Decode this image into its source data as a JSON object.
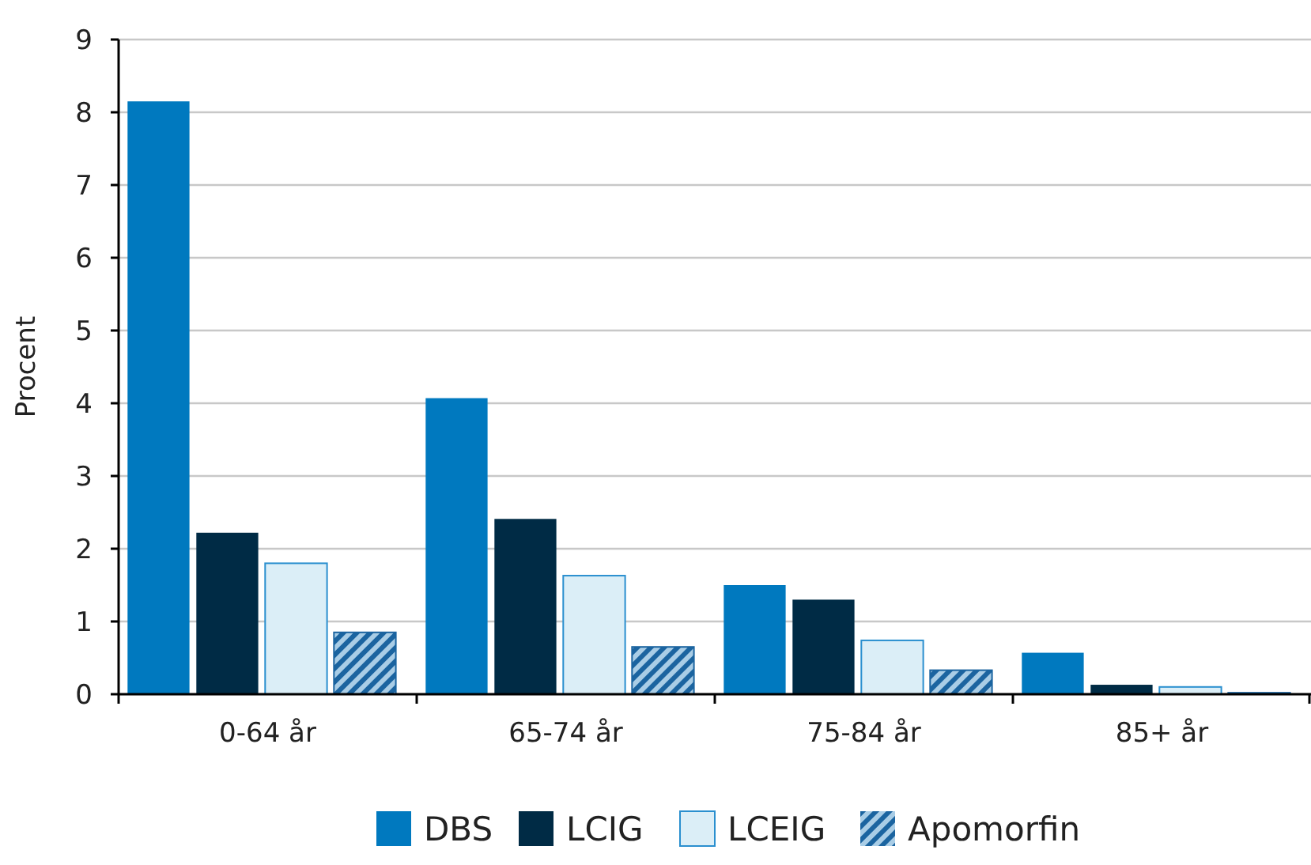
{
  "chart_data": {
    "type": "bar",
    "ylabel": "Procent",
    "categories": [
      "0-64 år",
      "65-74 år",
      "75-84 år",
      "85+ år"
    ],
    "series": [
      {
        "name": "DBS",
        "color": "#0079bf",
        "values": [
          8.15,
          4.07,
          1.5,
          0.57
        ]
      },
      {
        "name": "LCIG",
        "color": "#002b45",
        "values": [
          2.22,
          2.41,
          1.3,
          0.13
        ]
      },
      {
        "name": "LCEIG",
        "color": "#dbeef7",
        "values": [
          1.8,
          1.63,
          0.74,
          0.1
        ]
      },
      {
        "name": "Apomorfin",
        "color": "#1b64a0",
        "values": [
          0.85,
          0.65,
          0.33,
          0.02
        ]
      }
    ],
    "ylim": [
      0,
      9
    ],
    "yticks": [
      0,
      1,
      2,
      3,
      4,
      5,
      6,
      7,
      8,
      9
    ],
    "grid": "y",
    "legend": "bottom"
  }
}
